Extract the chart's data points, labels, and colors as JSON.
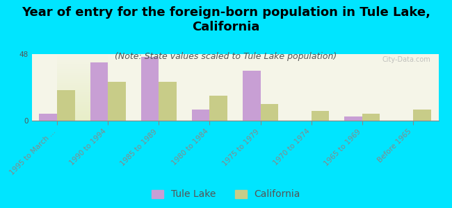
{
  "title": "Year of entry for the foreign-born population in Tule Lake,\nCalifornia",
  "subtitle": "(Note: State values scaled to Tule Lake population)",
  "categories": [
    "1995 to March ...",
    "1990 to 1994",
    "1985 to 1989",
    "1980 to 1984",
    "1975 to 1979",
    "1970 to 1974",
    "1965 to 1969",
    "Before 1965"
  ],
  "tule_lake_values": [
    5,
    42,
    46,
    8,
    36,
    0,
    3,
    0
  ],
  "california_values": [
    22,
    28,
    28,
    18,
    12,
    7,
    5,
    8
  ],
  "tule_lake_color": "#c89fd4",
  "california_color": "#c8cc88",
  "background_color": "#00e5ff",
  "plot_bg_gradient_top": "#f5f5e8",
  "plot_bg_gradient_bottom": "#e8eec8",
  "ylim": [
    0,
    48
  ],
  "yticks": [
    0,
    48
  ],
  "bar_width": 0.35,
  "title_fontsize": 13,
  "subtitle_fontsize": 9,
  "tick_fontsize": 7.5,
  "legend_fontsize": 10,
  "watermark": "City-Data.com"
}
